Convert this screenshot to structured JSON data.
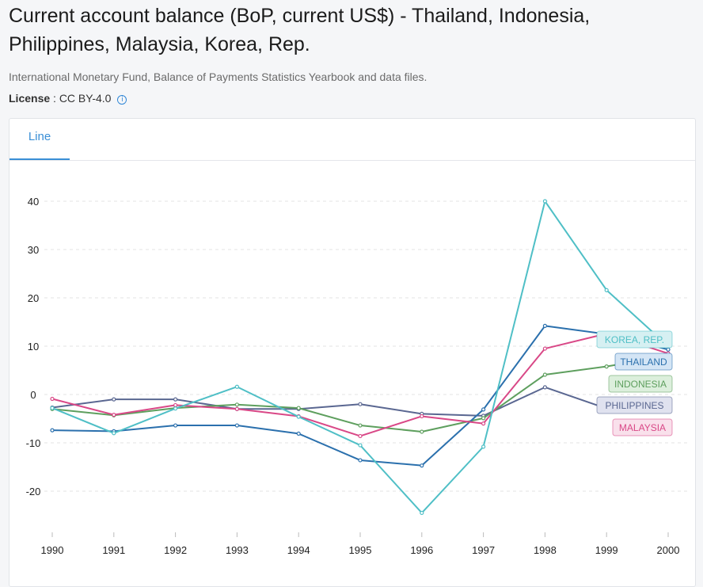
{
  "header": {
    "title": "Current account balance (BoP, current US$) - Thailand, Indonesia, Philippines, Malaysia, Korea, Rep.",
    "source": "International Monetary Fund, Balance of Payments Statistics Yearbook and data files.",
    "license_label": "License",
    "license_sep": " : ",
    "license_value": "CC BY-4.0",
    "info_glyph": "i"
  },
  "tabs": [
    {
      "label": "Line"
    }
  ],
  "chart_data": {
    "type": "line",
    "title": "",
    "xlabel": "",
    "ylabel": "",
    "x": [
      "1990",
      "1991",
      "1992",
      "1993",
      "1994",
      "1995",
      "1996",
      "1997",
      "1998",
      "1999",
      "2000"
    ],
    "y_ticks": [
      "40",
      "30",
      "20",
      "10",
      "0",
      "-10",
      "-20"
    ],
    "ylim": [
      -27,
      43
    ],
    "grid": "horizontal dashed",
    "legend": "inline labels at line ends (right)",
    "series": [
      {
        "name": "KOREA, REP.",
        "color": "#4fbfc6",
        "fill": "#d6f0f2",
        "values": [
          -2.8,
          -8.0,
          -2.9,
          1.6,
          -4.6,
          -10.5,
          -24.5,
          -10.8,
          40.0,
          21.6,
          10.0
        ]
      },
      {
        "name": "THAILAND",
        "color": "#2b70ad",
        "fill": "#d4e5f5",
        "values": [
          -7.4,
          -7.6,
          -6.4,
          -6.4,
          -8.1,
          -13.6,
          -14.7,
          -3.1,
          14.2,
          12.5,
          9.3
        ]
      },
      {
        "name": "INDONESIA",
        "color": "#5e9f5e",
        "fill": "#dcefdc",
        "values": [
          -3.0,
          -4.3,
          -2.8,
          -2.1,
          -2.8,
          -6.4,
          -7.7,
          -4.9,
          4.1,
          5.8,
          8.0
        ]
      },
      {
        "name": "PHILIPPINES",
        "color": "#5a6791",
        "fill": "#e0e2ef",
        "values": [
          -2.7,
          -1.0,
          -1.0,
          -3.0,
          -3.0,
          -2.0,
          -4.0,
          -4.4,
          1.5,
          -2.9,
          -2.2
        ]
      },
      {
        "name": "MALAYSIA",
        "color": "#d94887",
        "fill": "#f9e0eb",
        "values": [
          -0.9,
          -4.2,
          -2.2,
          -3.0,
          -4.5,
          -8.6,
          -4.5,
          -6.0,
          9.5,
          12.6,
          8.5
        ]
      }
    ]
  }
}
